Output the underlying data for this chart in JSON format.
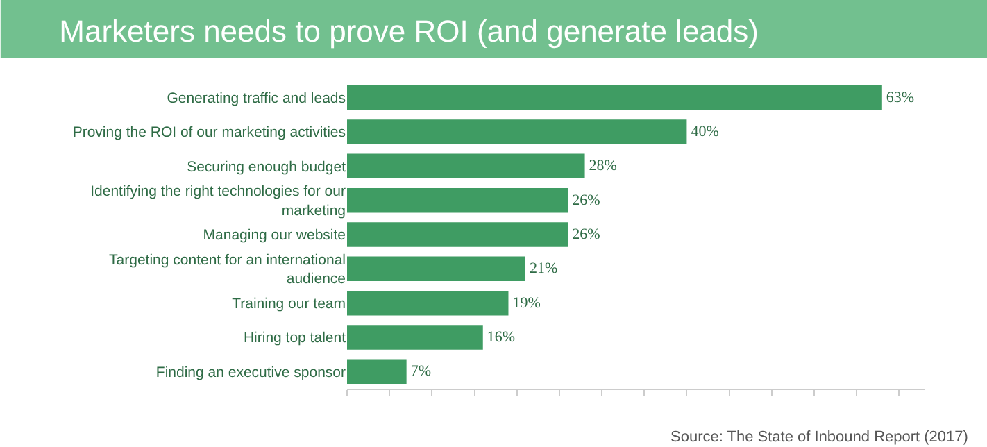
{
  "chart_data": {
    "type": "bar",
    "orientation": "horizontal",
    "title": "Marketers needs to prove ROI (and generate leads)",
    "categories": [
      "Generating traffic and leads",
      "Proving the ROI of our marketing activities",
      "Securing enough budget",
      "Identifying the right technologies for our marketing",
      "Managing our website",
      "Targeting content for an international audience",
      "Training our team",
      "Hiring top talent",
      "Finding an executive sponsor"
    ],
    "values": [
      63,
      40,
      28,
      26,
      26,
      21,
      19,
      16,
      7
    ],
    "value_labels": [
      "63%",
      "40%",
      "28%",
      "26%",
      "26%",
      "21%",
      "19%",
      "16%",
      "7%"
    ],
    "color": "#3f9c63",
    "xlim": [
      0,
      68
    ],
    "annotations": [
      "Source: The State of Inbound Report (2017)"
    ]
  }
}
